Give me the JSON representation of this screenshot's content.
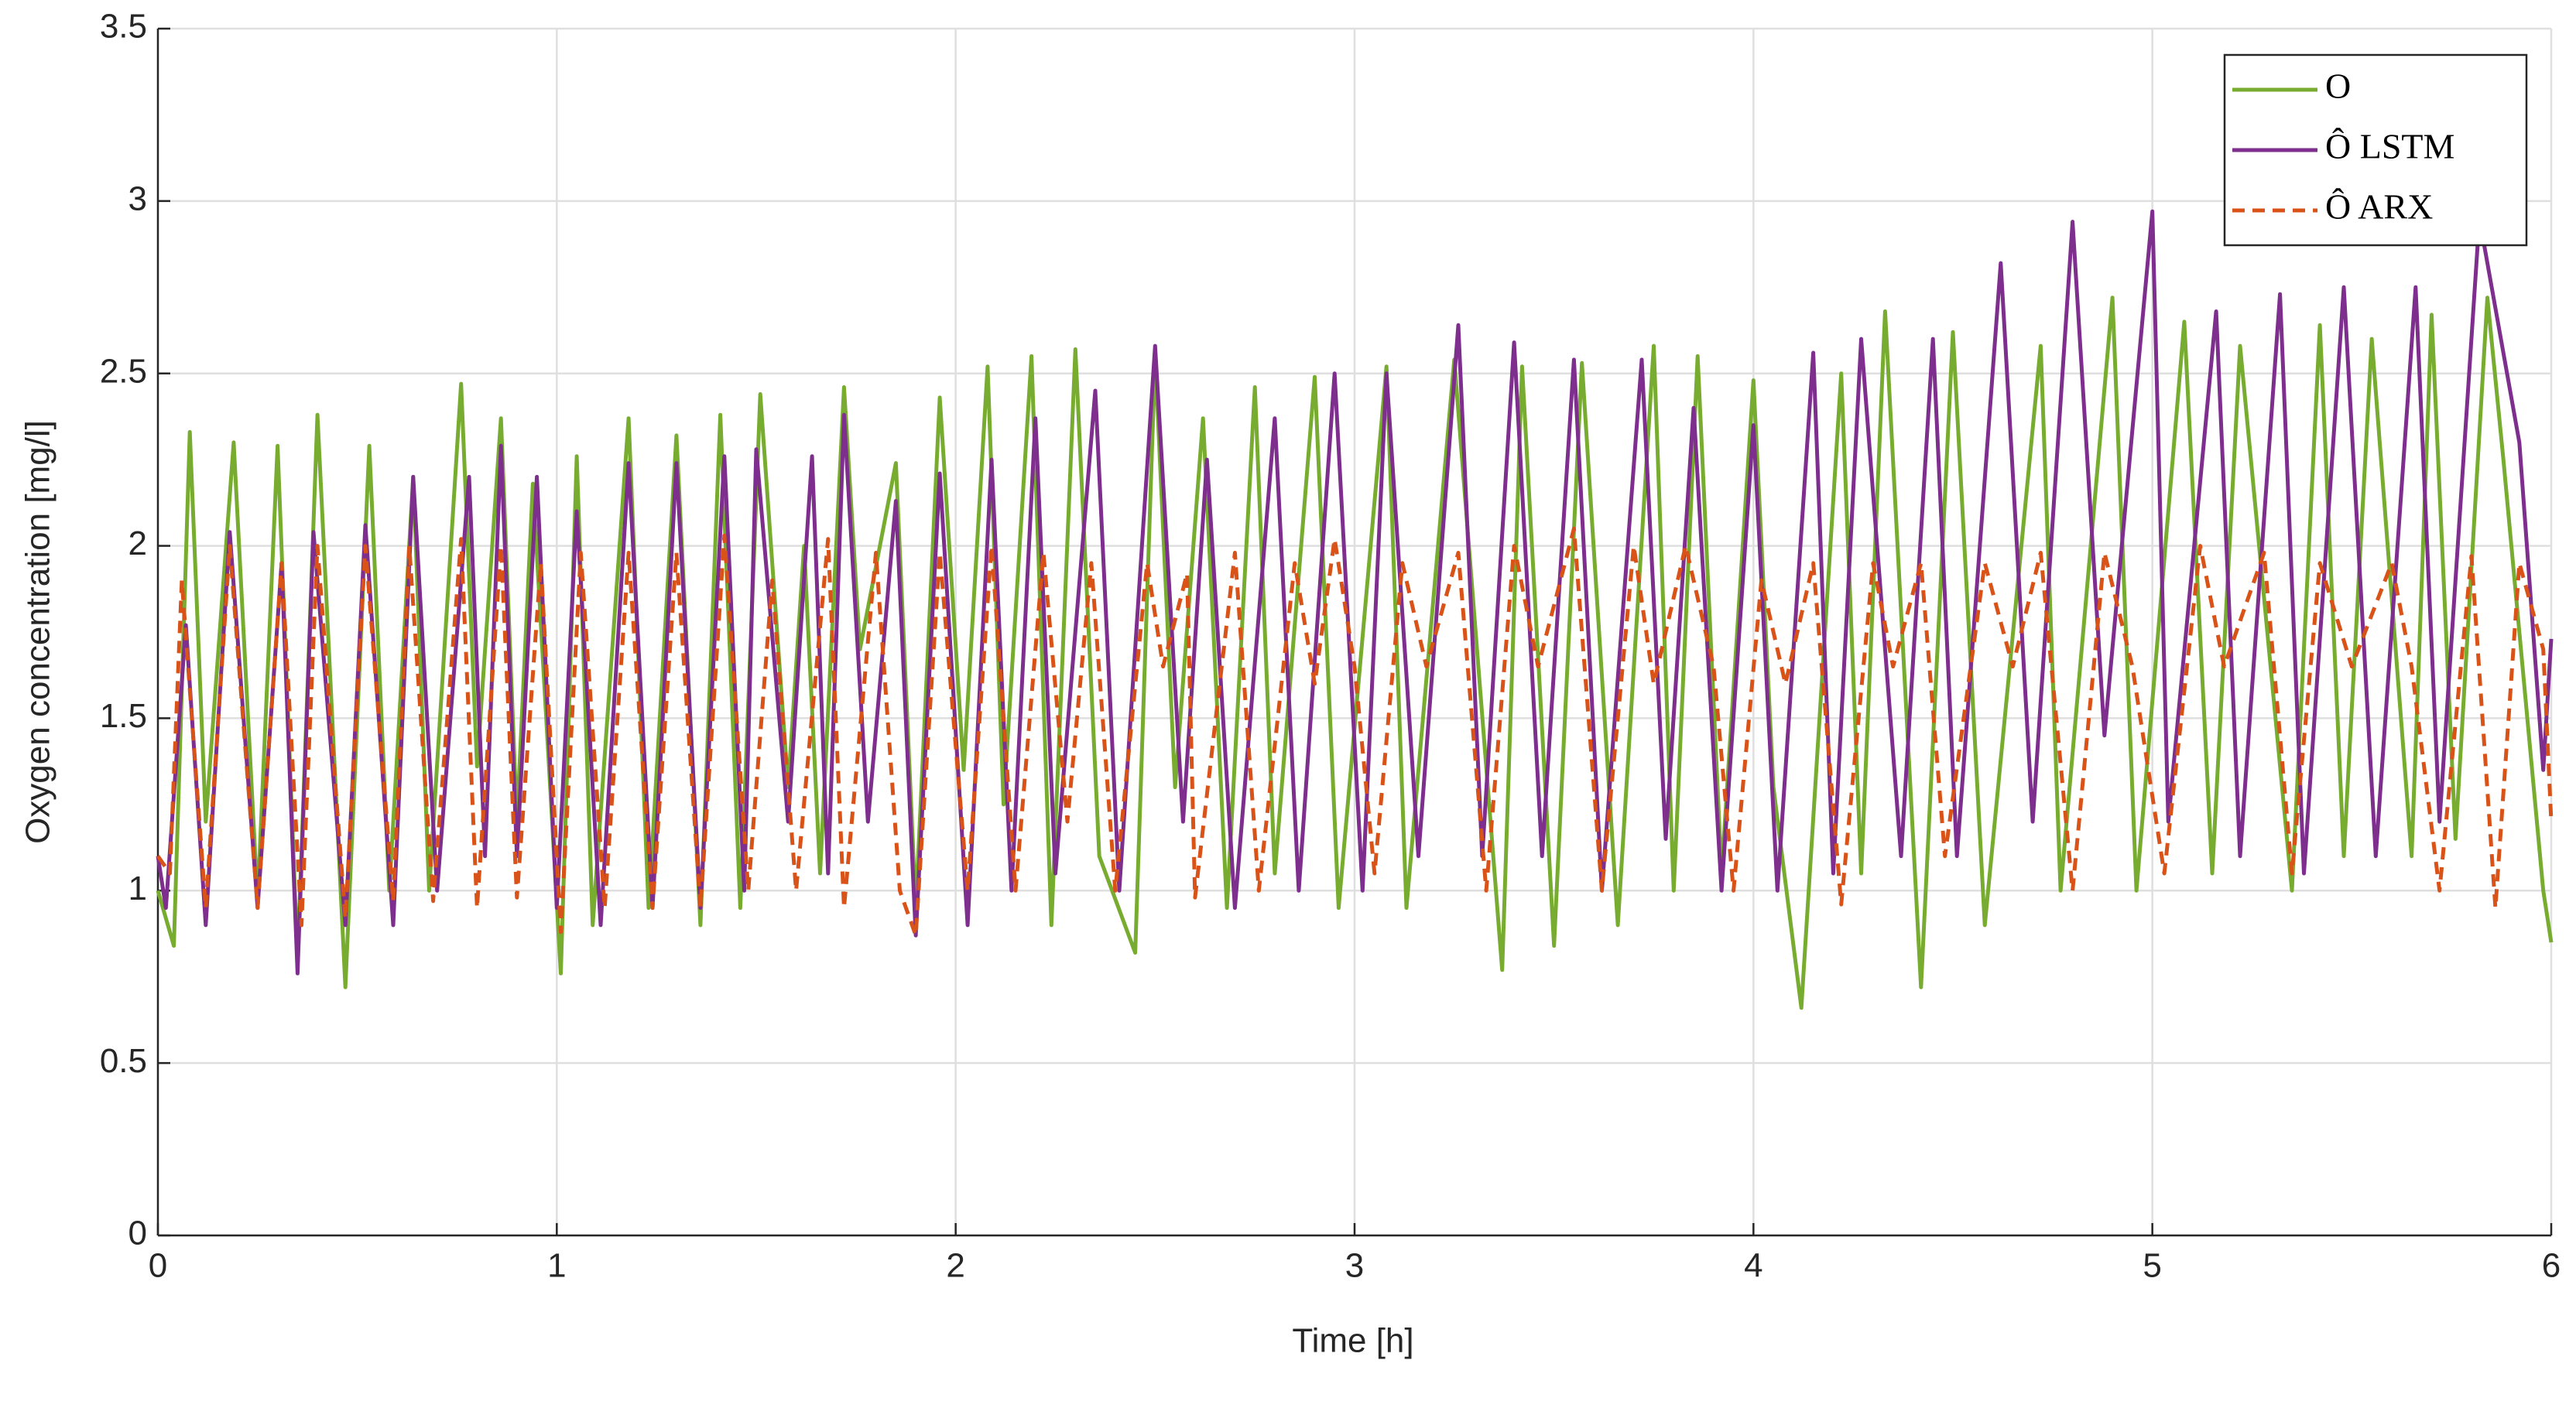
{
  "chart_data": {
    "type": "line",
    "xlabel": "Time [h]",
    "ylabel": "Oxygen concentration [mg/l]",
    "xlim": [
      0,
      6
    ],
    "ylim": [
      0,
      3.5
    ],
    "xticks": [
      0,
      1,
      2,
      3,
      4,
      5,
      6
    ],
    "yticks": [
      0,
      0.5,
      1,
      1.5,
      2,
      2.5,
      3,
      3.5
    ],
    "grid": true,
    "legend_position": "upper-right",
    "series": [
      {
        "name": "O",
        "color": "#77ac30",
        "line_style": "solid",
        "x": [
          0,
          0.04,
          0.08,
          0.12,
          0.19,
          0.25,
          0.3,
          0.35,
          0.4,
          0.47,
          0.53,
          0.58,
          0.64,
          0.68,
          0.76,
          0.8,
          0.86,
          0.9,
          0.94,
          1.01,
          1.05,
          1.09,
          1.18,
          1.23,
          1.3,
          1.36,
          1.41,
          1.46,
          1.51,
          1.58,
          1.62,
          1.66,
          1.72,
          1.76,
          1.85,
          1.9,
          1.96,
          2.02,
          2.08,
          2.12,
          2.19,
          2.24,
          2.3,
          2.36,
          2.45,
          2.5,
          2.55,
          2.62,
          2.68,
          2.75,
          2.8,
          2.9,
          2.96,
          3.08,
          3.13,
          3.25,
          3.37,
          3.42,
          3.5,
          3.57,
          3.66,
          3.75,
          3.8,
          3.86,
          3.92,
          4.0,
          4.05,
          4.12,
          4.22,
          4.27,
          4.33,
          4.42,
          4.5,
          4.58,
          4.72,
          4.77,
          4.9,
          4.96,
          5.08,
          5.15,
          5.22,
          5.35,
          5.42,
          5.48,
          5.55,
          5.65,
          5.7,
          5.76,
          5.84,
          5.88,
          5.98,
          6.0
        ],
        "values": [
          1.0,
          0.84,
          2.33,
          1.2,
          2.3,
          0.97,
          2.29,
          0.8,
          2.38,
          0.72,
          2.29,
          1.0,
          2.2,
          1.0,
          2.47,
          1.36,
          2.37,
          1.2,
          2.18,
          0.76,
          2.26,
          0.9,
          2.37,
          0.95,
          2.32,
          0.9,
          2.38,
          0.95,
          2.44,
          1.3,
          2.0,
          1.05,
          2.46,
          1.7,
          2.24,
          0.95,
          2.43,
          1.35,
          2.52,
          1.25,
          2.55,
          0.9,
          2.57,
          1.1,
          0.82,
          2.55,
          1.3,
          2.37,
          0.95,
          2.46,
          1.05,
          2.49,
          0.95,
          2.52,
          0.95,
          2.54,
          0.77,
          2.52,
          0.84,
          2.53,
          0.9,
          2.58,
          1.0,
          2.55,
          1.05,
          2.48,
          1.3,
          0.66,
          2.5,
          1.05,
          2.68,
          0.72,
          2.62,
          0.9,
          2.58,
          1.0,
          2.72,
          1.0,
          2.65,
          1.05,
          2.58,
          1.0,
          2.64,
          1.1,
          2.6,
          1.1,
          2.67,
          1.15,
          2.72,
          2.25,
          1.0,
          0.85
        ]
      },
      {
        "name": "Ô LSTM",
        "color": "#7e2f8e",
        "line_style": "solid",
        "x": [
          0,
          0.02,
          0.07,
          0.12,
          0.18,
          0.25,
          0.31,
          0.35,
          0.39,
          0.47,
          0.52,
          0.59,
          0.64,
          0.7,
          0.78,
          0.82,
          0.86,
          0.9,
          0.95,
          1.0,
          1.05,
          1.11,
          1.18,
          1.24,
          1.3,
          1.36,
          1.42,
          1.47,
          1.5,
          1.58,
          1.64,
          1.68,
          1.72,
          1.78,
          1.85,
          1.9,
          1.96,
          2.03,
          2.09,
          2.14,
          2.2,
          2.25,
          2.35,
          2.41,
          2.5,
          2.57,
          2.63,
          2.7,
          2.8,
          2.86,
          2.95,
          3.02,
          3.08,
          3.16,
          3.26,
          3.32,
          3.4,
          3.47,
          3.55,
          3.62,
          3.72,
          3.78,
          3.85,
          3.92,
          4.0,
          4.06,
          4.15,
          4.2,
          4.27,
          4.37,
          4.45,
          4.51,
          4.62,
          4.7,
          4.8,
          4.88,
          5.0,
          5.04,
          5.16,
          5.22,
          5.32,
          5.38,
          5.48,
          5.56,
          5.66,
          5.72,
          5.82,
          5.92,
          5.98,
          6.0
        ],
        "values": [
          1.1,
          0.95,
          1.77,
          0.9,
          2.04,
          0.95,
          1.95,
          0.76,
          2.04,
          0.9,
          2.06,
          0.9,
          2.2,
          1.0,
          2.2,
          1.1,
          2.29,
          1.1,
          2.2,
          0.95,
          2.1,
          0.9,
          2.24,
          0.95,
          2.24,
          0.95,
          2.26,
          1.0,
          2.28,
          1.2,
          2.26,
          1.05,
          2.38,
          1.2,
          2.13,
          0.87,
          2.21,
          0.9,
          2.25,
          1.0,
          2.37,
          1.05,
          2.45,
          1.0,
          2.58,
          1.2,
          2.25,
          0.95,
          2.37,
          1.0,
          2.5,
          1.0,
          2.5,
          1.1,
          2.64,
          1.1,
          2.59,
          1.1,
          2.54,
          1.0,
          2.54,
          1.15,
          2.4,
          1.0,
          2.35,
          1.0,
          2.56,
          1.05,
          2.6,
          1.1,
          2.6,
          1.1,
          2.82,
          1.2,
          2.94,
          1.45,
          2.97,
          1.2,
          2.68,
          1.1,
          2.73,
          1.05,
          2.75,
          1.1,
          2.75,
          1.2,
          2.95,
          2.3,
          1.35,
          1.73
        ]
      },
      {
        "name": "Ô ARX",
        "color": "#d95319",
        "line_style": "dashed",
        "x": [
          0,
          0.03,
          0.06,
          0.12,
          0.18,
          0.25,
          0.31,
          0.36,
          0.4,
          0.47,
          0.52,
          0.59,
          0.63,
          0.69,
          0.76,
          0.8,
          0.86,
          0.9,
          0.96,
          1.01,
          1.06,
          1.12,
          1.18,
          1.24,
          1.3,
          1.36,
          1.42,
          1.48,
          1.54,
          1.6,
          1.68,
          1.72,
          1.8,
          1.86,
          1.9,
          1.96,
          2.03,
          2.09,
          2.15,
          2.22,
          2.28,
          2.34,
          2.4,
          2.48,
          2.52,
          2.58,
          2.6,
          2.7,
          2.76,
          2.85,
          2.9,
          2.95,
          3.0,
          3.05,
          3.12,
          3.18,
          3.26,
          3.33,
          3.4,
          3.46,
          3.55,
          3.62,
          3.7,
          3.75,
          3.83,
          3.9,
          3.95,
          4.02,
          4.08,
          4.15,
          4.22,
          4.3,
          4.35,
          4.42,
          4.48,
          4.58,
          4.65,
          4.72,
          4.8,
          4.88,
          4.95,
          5.03,
          5.12,
          5.18,
          5.28,
          5.35,
          5.42,
          5.5,
          5.6,
          5.65,
          5.72,
          5.8,
          5.86,
          5.92,
          5.98,
          6.0
        ],
        "values": [
          1.1,
          1.05,
          1.9,
          0.95,
          2.0,
          0.95,
          1.95,
          0.9,
          2.0,
          0.92,
          2.0,
          0.97,
          2.0,
          0.97,
          2.02,
          0.95,
          2.0,
          0.98,
          1.95,
          0.88,
          1.98,
          0.95,
          1.98,
          0.95,
          1.98,
          0.95,
          2.03,
          1.0,
          1.9,
          1.0,
          2.02,
          0.95,
          1.98,
          1.0,
          0.87,
          1.98,
          1.0,
          2.0,
          1.0,
          1.98,
          1.2,
          1.95,
          1.0,
          1.95,
          1.65,
          1.92,
          0.98,
          1.98,
          1.0,
          1.95,
          1.6,
          2.02,
          1.65,
          1.05,
          1.95,
          1.65,
          1.98,
          1.0,
          2.0,
          1.65,
          2.05,
          1.0,
          2.0,
          1.6,
          2.0,
          1.65,
          1.0,
          1.9,
          1.6,
          1.95,
          0.96,
          1.95,
          1.65,
          1.95,
          1.1,
          1.95,
          1.65,
          1.98,
          1.0,
          1.98,
          1.65,
          1.05,
          2.0,
          1.65,
          1.98,
          1.05,
          1.95,
          1.65,
          1.95,
          1.65,
          1.0,
          1.97,
          0.95,
          1.95,
          1.7,
          1.2
        ]
      }
    ]
  }
}
